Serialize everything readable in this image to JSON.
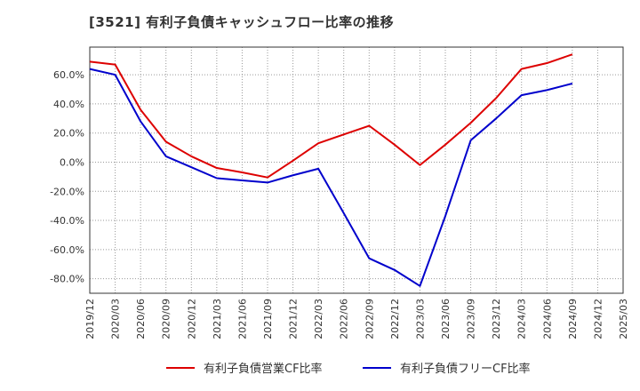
{
  "chart_data": {
    "type": "line",
    "title": "[3521]  有利子負債キャッシュフロー比率の推移",
    "x": [
      "2019/12",
      "2020/03",
      "2020/06",
      "2020/09",
      "2020/12",
      "2021/03",
      "2021/06",
      "2021/09",
      "2021/12",
      "2022/03",
      "2022/06",
      "2022/09",
      "2022/12",
      "2023/03",
      "2023/06",
      "2023/09",
      "2023/12",
      "2024/03",
      "2024/06",
      "2024/09",
      "2024/12",
      "2025/03"
    ],
    "xlabel": "",
    "ylabel": "",
    "ylim": [
      -90,
      79
    ],
    "yticks": [
      -80,
      -60,
      -40,
      -20,
      0,
      20,
      40,
      60
    ],
    "ytick_labels": [
      "-80.0%",
      "-60.0%",
      "-40.0%",
      "-20.0%",
      "0.0%",
      "20.0%",
      "40.0%",
      "60.0%"
    ],
    "grid": true,
    "legend": "bottom",
    "series": [
      {
        "name": "有利子負債営業CF比率",
        "color": "#dd0000",
        "values": [
          69,
          67,
          36,
          14,
          4,
          -4,
          -7,
          -10.5,
          1,
          13,
          19,
          25,
          12,
          -2,
          12,
          27,
          44,
          64,
          68,
          74,
          null,
          null
        ]
      },
      {
        "name": "有利子負債フリーCF比率",
        "color": "#0000cc",
        "values": [
          64,
          60,
          28,
          4,
          -3.5,
          -11,
          -12.5,
          -14,
          -9,
          -4.5,
          -35,
          -66,
          -74,
          -85,
          -37,
          15,
          30,
          46,
          49.5,
          54,
          null,
          null
        ]
      }
    ]
  }
}
